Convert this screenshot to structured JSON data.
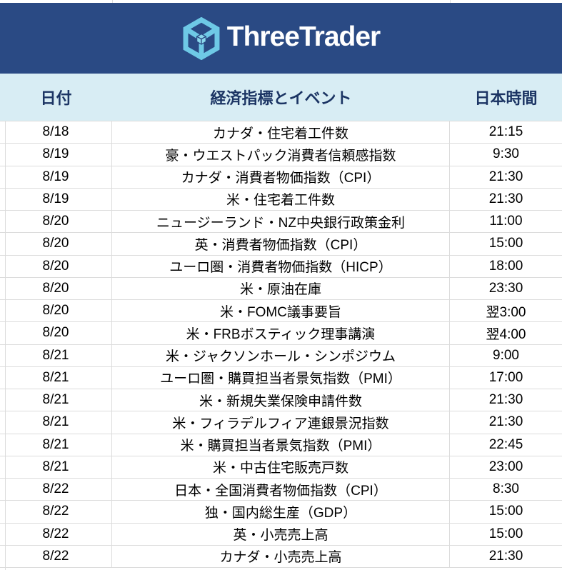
{
  "banner": {
    "brand": "ThreeTrader",
    "logo_icon": "threetrader-cube-logo"
  },
  "colors": {
    "banner_bg": "#2a4a84",
    "logo_cyan": "#6ec9e6",
    "header_bg": "#d8edf4",
    "header_text": "#1c3564",
    "grid": "#dcdcdc",
    "body_text": "#000000"
  },
  "table": {
    "headers": [
      {
        "label": "日付"
      },
      {
        "label": "経済指標とイベント"
      },
      {
        "label": "日本時間"
      }
    ],
    "rows": [
      {
        "date": "8/18",
        "event": "カナダ・住宅着工件数",
        "time": "21:15"
      },
      {
        "date": "8/19",
        "event": "豪・ウエストパック消費者信頼感指数",
        "time": "9:30"
      },
      {
        "date": "8/19",
        "event": "カナダ・消費者物価指数（CPI）",
        "time": "21:30"
      },
      {
        "date": "8/19",
        "event": "米・住宅着工件数",
        "time": "21:30"
      },
      {
        "date": "8/20",
        "event": "ニュージーランド・NZ中央銀行政策金利",
        "time": "11:00"
      },
      {
        "date": "8/20",
        "event": "英・消費者物価指数（CPI）",
        "time": "15:00"
      },
      {
        "date": "8/20",
        "event": "ユーロ圏・消費者物価指数（HICP）",
        "time": "18:00"
      },
      {
        "date": "8/20",
        "event": "米・原油在庫",
        "time": "23:30"
      },
      {
        "date": "8/20",
        "event": "米・FOMC議事要旨",
        "time": "翌3:00"
      },
      {
        "date": "8/20",
        "event": "米・FRBボスティック理事講演",
        "time": "翌4:00"
      },
      {
        "date": "8/21",
        "event": "米・ジャクソンホール・シンポジウム",
        "time": "9:00"
      },
      {
        "date": "8/21",
        "event": "ユーロ圏・購買担当者景気指数（PMI）",
        "time": "17:00"
      },
      {
        "date": "8/21",
        "event": "米・新規失業保険申請件数",
        "time": "21:30"
      },
      {
        "date": "8/21",
        "event": "米・フィラデルフィア連銀景況指数",
        "time": "21:30"
      },
      {
        "date": "8/21",
        "event": "米・購買担当者景気指数（PMI）",
        "time": "22:45"
      },
      {
        "date": "8/21",
        "event": "米・中古住宅販売戸数",
        "time": "23:00"
      },
      {
        "date": "8/22",
        "event": "日本・全国消費者物価指数（CPI）",
        "time": "8:30"
      },
      {
        "date": "8/22",
        "event": "独・国内総生産（GDP）",
        "time": "15:00"
      },
      {
        "date": "8/22",
        "event": "英・小売売上高",
        "time": "15:00"
      },
      {
        "date": "8/22",
        "event": "カナダ・小売売上高",
        "time": "21:30"
      }
    ]
  }
}
